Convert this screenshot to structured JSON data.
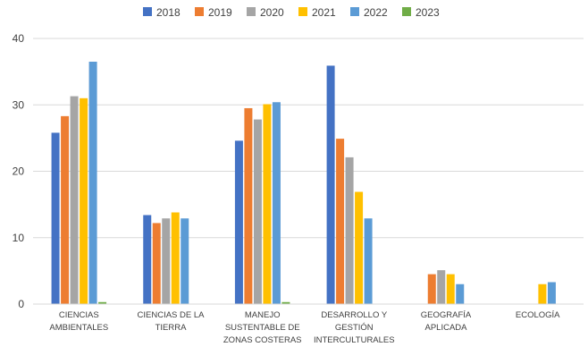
{
  "chart_data": {
    "type": "bar",
    "categories": [
      [
        "CIENCIAS",
        "AMBIENTALES"
      ],
      [
        "CIENCIAS DE LA",
        "TIERRA"
      ],
      [
        "MANEJO",
        "SUSTENTABLE DE",
        "ZONAS COSTERAS"
      ],
      [
        "DESARROLLO Y",
        "GESTIÓN",
        "INTERCULTURALES"
      ],
      [
        "GEOGRAFÍA",
        "APLICADA"
      ],
      [
        "ECOLOGÍA"
      ]
    ],
    "series": [
      {
        "name": "2018",
        "color": "#4472c4",
        "values": [
          25.8,
          13.4,
          24.6,
          35.9,
          null,
          null
        ]
      },
      {
        "name": "2019",
        "color": "#ed7d31",
        "values": [
          28.3,
          12.2,
          29.5,
          24.9,
          4.5,
          null
        ]
      },
      {
        "name": "2020",
        "color": "#a5a5a5",
        "values": [
          31.3,
          12.9,
          27.8,
          22.1,
          5.1,
          null
        ]
      },
      {
        "name": "2021",
        "color": "#ffc000",
        "values": [
          31.0,
          13.8,
          30.1,
          16.9,
          4.5,
          3.0
        ]
      },
      {
        "name": "2022",
        "color": "#5b9bd5",
        "values": [
          36.5,
          12.9,
          30.4,
          12.9,
          3.0,
          3.3
        ]
      },
      {
        "name": "2023",
        "color": "#70ad47",
        "values": [
          0.3,
          null,
          0.3,
          null,
          null,
          null
        ]
      }
    ],
    "yticks": [
      0,
      10,
      20,
      30,
      40
    ],
    "ylim": [
      0,
      40
    ],
    "grid": true,
    "legend": "top"
  }
}
